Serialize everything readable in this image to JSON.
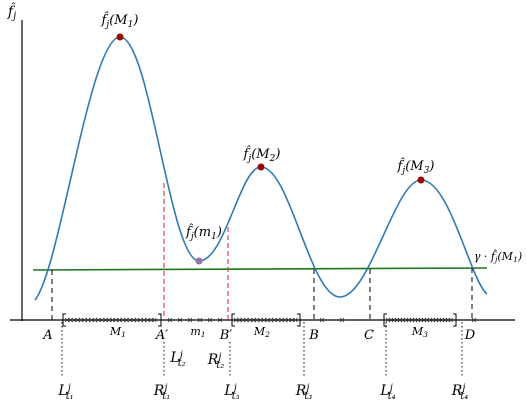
{
  "axis_label": [
    {
      "t": "f̂"
    },
    {
      "t": "j",
      "s": "sub"
    }
  ],
  "points": [
    [
      {
        "t": "f̂"
      },
      {
        "t": "j",
        "s": "sub"
      },
      {
        "t": "(M"
      },
      {
        "t": "1",
        "s": "sub"
      },
      {
        "t": ")"
      }
    ],
    [
      {
        "t": "f̂"
      },
      {
        "t": "j",
        "s": "sub"
      },
      {
        "t": "(m"
      },
      {
        "t": "1",
        "s": "sub"
      },
      {
        "t": ")"
      }
    ],
    [
      {
        "t": "f̂"
      },
      {
        "t": "j",
        "s": "sub"
      },
      {
        "t": "(M"
      },
      {
        "t": "2",
        "s": "sub"
      },
      {
        "t": ")"
      }
    ],
    [
      {
        "t": "f̂"
      },
      {
        "t": "j",
        "s": "sub"
      },
      {
        "t": "(M"
      },
      {
        "t": "3",
        "s": "sub"
      },
      {
        "t": ")"
      }
    ]
  ],
  "threshold": [
    {
      "t": "γ · f̂"
    },
    {
      "t": "j",
      "s": "sub"
    },
    {
      "t": "(M"
    },
    {
      "t": "1",
      "s": "sub"
    },
    {
      "t": ")"
    }
  ],
  "axis_points": [
    [
      {
        "t": "A"
      }
    ],
    [
      {
        "t": "A′"
      }
    ],
    [
      {
        "t": "B′"
      }
    ],
    [
      {
        "t": "B"
      }
    ],
    [
      {
        "t": "C"
      }
    ],
    [
      {
        "t": "D"
      }
    ]
  ],
  "intervals": [
    [
      {
        "t": "M"
      },
      {
        "t": "1",
        "s": "sub"
      }
    ],
    [
      {
        "t": "m"
      },
      {
        "t": "1",
        "s": "sub"
      }
    ],
    [
      {
        "t": "M"
      },
      {
        "t": "2",
        "s": "sub"
      }
    ],
    [
      {
        "t": "M"
      },
      {
        "t": "3",
        "s": "sub"
      }
    ]
  ],
  "bounds": [
    [
      {
        "t": "L"
      },
      {
        "t": "j",
        "s": "sup"
      },
      {
        "t": "t₁",
        "s": "sub"
      }
    ],
    [
      {
        "t": "R"
      },
      {
        "t": "j",
        "s": "sup"
      },
      {
        "t": "t₁",
        "s": "sub"
      }
    ],
    [
      {
        "t": "L"
      },
      {
        "t": "j",
        "s": "sup"
      },
      {
        "t": "t₂",
        "s": "sub"
      }
    ],
    [
      {
        "t": "R"
      },
      {
        "t": "j",
        "s": "sup"
      },
      {
        "t": "t₂",
        "s": "sub"
      }
    ],
    [
      {
        "t": "L"
      },
      {
        "t": "j",
        "s": "sup"
      },
      {
        "t": "t₃",
        "s": "sub"
      }
    ],
    [
      {
        "t": "R"
      },
      {
        "t": "j",
        "s": "sup"
      },
      {
        "t": "t₃",
        "s": "sub"
      }
    ],
    [
      {
        "t": "L"
      },
      {
        "t": "j",
        "s": "sup"
      },
      {
        "t": "t₄",
        "s": "sub"
      }
    ],
    [
      {
        "t": "R"
      },
      {
        "t": "j",
        "s": "sup"
      },
      {
        "t": "t₄",
        "s": "sub"
      }
    ]
  ]
}
